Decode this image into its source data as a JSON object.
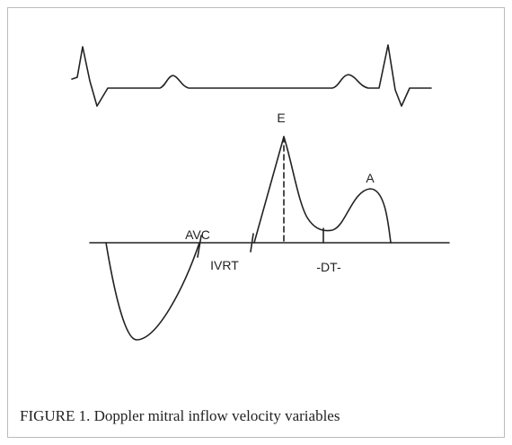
{
  "figure": {
    "labels": {
      "e": "E",
      "a": "A",
      "avc": "AVC",
      "ivrt": "IVRT",
      "dt": "-DT-"
    },
    "caption": "FIGURE 1. Doppler mitral inflow velocity variables"
  }
}
